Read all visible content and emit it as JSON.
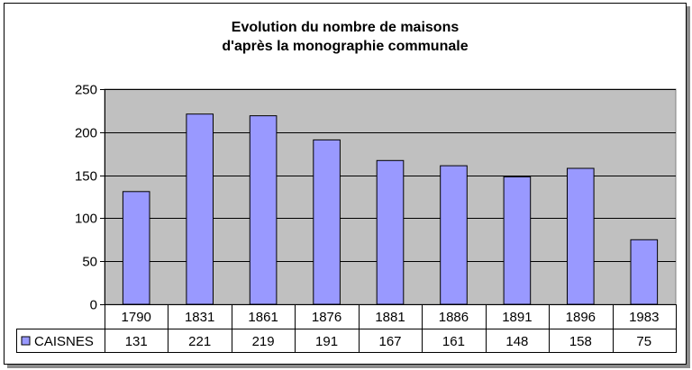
{
  "chart_data": {
    "type": "bar",
    "title_lines": [
      "Evolution du nombre de maisons",
      "d'après la monographie communale"
    ],
    "categories": [
      "1790",
      "1831",
      "1861",
      "1876",
      "1881",
      "1886",
      "1891",
      "1896",
      "1983"
    ],
    "series": [
      {
        "name": "CAISNES",
        "values": [
          131,
          221,
          219,
          191,
          167,
          161,
          148,
          158,
          75
        ],
        "color": "#9999ff"
      }
    ],
    "ylim": [
      0,
      250
    ],
    "yticks": [
      0,
      50,
      100,
      150,
      200,
      250
    ],
    "grid": true,
    "plot_background": "#c0c0c0",
    "data_table": true
  }
}
